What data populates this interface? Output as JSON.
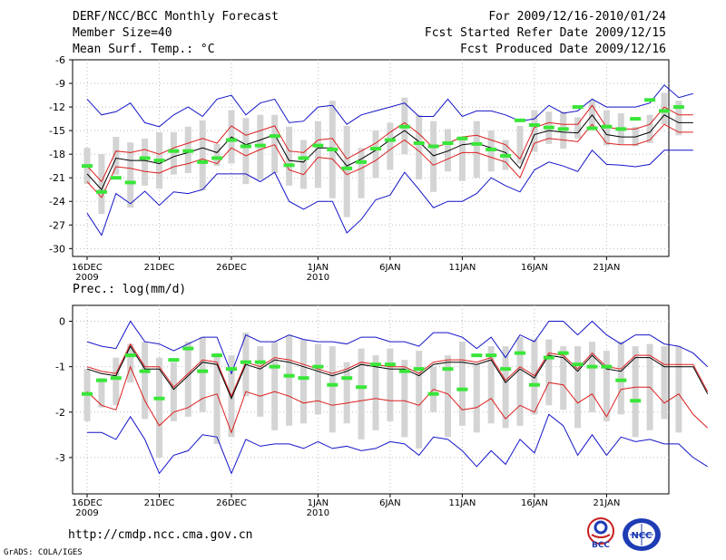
{
  "header": {
    "left": [
      "DERF/NCC/BCC Monthly Forecast",
      "Member Size=40",
      "Mean Surf. Temp.: °C"
    ],
    "right": [
      "For 2009/12/16-2010/01/24",
      "Fcst Started Refer Date 2009/12/15",
      "Fcst Produced Date 2009/12/16"
    ]
  },
  "footer": {
    "url": "http://cmdp.ncc.cma.gov.cn",
    "credit": "GrADS: COLA/IGES",
    "logo_bcc": "BCC",
    "logo_ncc": "NCC"
  },
  "colors": {
    "bar": "#d4d4d4",
    "green": "#39e639",
    "red": "#dc1e1e",
    "blue": "#1414c8",
    "black": "#000000",
    "grid": "#bbbbbb"
  },
  "x_ticks": [
    {
      "day": 0,
      "label": "16DEC",
      "sub": "2009"
    },
    {
      "day": 5,
      "label": "21DEC",
      "sub": ""
    },
    {
      "day": 10,
      "label": "26DEC",
      "sub": ""
    },
    {
      "day": 16,
      "label": "1JAN",
      "sub": "2010"
    },
    {
      "day": 21,
      "label": "6JAN",
      "sub": ""
    },
    {
      "day": 26,
      "label": "11JAN",
      "sub": ""
    },
    {
      "day": 31,
      "label": "16JAN",
      "sub": ""
    },
    {
      "day": 36,
      "label": "21JAN",
      "sub": ""
    }
  ],
  "chart_data": [
    {
      "type": "box-plume",
      "title": "Mean Surf. Temp.: °C",
      "xlabel": "",
      "ylabel": "",
      "ylim": [
        -31,
        -6
      ],
      "yticks": [
        -6,
        -9,
        -12,
        -15,
        -18,
        -21,
        -24,
        -27,
        -30
      ],
      "days": 40,
      "series": [
        {
          "name": "ensemble mean",
          "color": "black",
          "values": [
            -20.5,
            -22.5,
            -18.5,
            -18.8,
            -18.8,
            -19.2,
            -18.3,
            -17.8,
            -17.2,
            -17.8,
            -15.8,
            -16.8,
            -16.2,
            -15.5,
            -18.8,
            -19.0,
            -17.2,
            -17.2,
            -19.5,
            -18.6,
            -17.5,
            -16.2,
            -15.0,
            -16.4,
            -18.2,
            -17.6,
            -16.8,
            -16.6,
            -17.2,
            -17.8,
            -19.8,
            -15.5,
            -15.0,
            -15.2,
            -15.3,
            -13.0,
            -15.5,
            -15.8,
            -15.8,
            -15.2,
            -13.0,
            -14.0,
            -14.0
          ]
        },
        {
          "name": "upper",
          "color": "red",
          "values": [
            -19.5,
            -21.5,
            -17.6,
            -17.8,
            -17.4,
            -18.0,
            -17.2,
            -16.6,
            -16.0,
            -16.6,
            -14.4,
            -15.6,
            -15.0,
            -14.4,
            -17.6,
            -17.8,
            -16.2,
            -16.0,
            -18.6,
            -17.6,
            -16.6,
            -15.2,
            -14.0,
            -15.4,
            -17.2,
            -16.6,
            -15.8,
            -15.6,
            -16.2,
            -16.8,
            -18.6,
            -14.6,
            -14.0,
            -14.2,
            -14.2,
            -11.8,
            -14.6,
            -14.8,
            -14.8,
            -14.2,
            -12.0,
            -13.0,
            -13.0
          ]
        },
        {
          "name": "lower",
          "color": "red",
          "values": [
            -21.5,
            -23.5,
            -19.6,
            -19.8,
            -20.2,
            -20.4,
            -19.6,
            -19.2,
            -18.6,
            -19.2,
            -17.2,
            -18.2,
            -17.4,
            -16.8,
            -20.0,
            -20.6,
            -18.4,
            -18.6,
            -20.6,
            -19.8,
            -18.8,
            -17.4,
            -16.2,
            -17.6,
            -19.4,
            -18.6,
            -17.8,
            -17.8,
            -18.4,
            -19.0,
            -21.0,
            -16.6,
            -16.0,
            -16.2,
            -16.4,
            -14.2,
            -16.6,
            -16.8,
            -16.8,
            -16.2,
            -14.2,
            -15.2,
            -15.2
          ]
        },
        {
          "name": "max",
          "color": "blue",
          "values": [
            -11.0,
            -13.0,
            -12.6,
            -11.5,
            -14.0,
            -14.5,
            -13.0,
            -12.0,
            -13.2,
            -11.0,
            -10.5,
            -13.0,
            -11.5,
            -11.0,
            -14.0,
            -13.8,
            -12.0,
            -11.8,
            -14.2,
            -13.0,
            -12.5,
            -12.0,
            -11.5,
            -13.2,
            -13.2,
            -11.0,
            -13.2,
            -12.5,
            -12.5,
            -13.0,
            -13.8,
            -13.5,
            -11.8,
            -12.8,
            -12.5,
            -11.0,
            -12.0,
            -12.0,
            -12.0,
            -11.5,
            -9.2,
            -10.8,
            -10.3
          ]
        },
        {
          "name": "min",
          "color": "blue",
          "values": [
            -25.5,
            -28.3,
            -23.0,
            -24.3,
            -22.7,
            -24.5,
            -22.8,
            -23.0,
            -22.5,
            -20.5,
            -20.5,
            -20.5,
            -21.5,
            -20.3,
            -24.0,
            -25.0,
            -24.0,
            -24.0,
            -28.0,
            -26.3,
            -23.8,
            -23.2,
            -20.3,
            -22.5,
            -24.8,
            -24.0,
            -24.0,
            -23.0,
            -21.0,
            -22.0,
            -22.8,
            -20.0,
            -19.0,
            -19.5,
            -20.2,
            -17.5,
            -19.3,
            -19.4,
            -19.6,
            -19.3,
            -17.5,
            -17.5,
            -17.5
          ]
        },
        {
          "name": "observed",
          "color": "green",
          "values": [
            -19.5,
            -22.8,
            -21.0,
            -21.6,
            -18.5,
            -18.8,
            -17.6,
            -17.6,
            -19.0,
            -18.5,
            -16.2,
            -17.0,
            -16.9,
            -15.7,
            -19.4,
            -18.5,
            -16.9,
            -17.4,
            -19.8,
            -19.0,
            -17.3,
            -16.2,
            -14.5,
            -16.6,
            -17.0,
            -16.6,
            -16.0,
            -16.7,
            -17.4,
            -18.2,
            -13.7,
            -14.3,
            -14.6,
            -14.8,
            -12.0,
            -14.7,
            -14.5,
            -14.8,
            -13.5,
            -11.1,
            -12.5,
            -12.0
          ]
        },
        {
          "name": "spread_top",
          "color": "grey",
          "values": [
            -17.2,
            -18.0,
            -15.8,
            -16.5,
            -16.0,
            -15.2,
            -15.2,
            -14.5,
            -13.7,
            -16.7,
            -12.4,
            -13.4,
            -13.0,
            -13.0,
            -14.5,
            -16.2,
            -13.8,
            -11.2,
            -14.4,
            -17.2,
            -15.0,
            -14.0,
            -10.8,
            -13.0,
            -13.8,
            -14.8,
            -16.0,
            -13.8,
            -15.0,
            -16.2,
            -14.4,
            -12.4,
            -12.6,
            -12.6,
            -13.3,
            -11.2,
            -12.4,
            -12.8,
            -14.5,
            -13.0,
            -10.2,
            -11.2,
            -11.2
          ]
        },
        {
          "name": "spread_bottom",
          "color": "grey",
          "values": [
            -21.8,
            -25.6,
            -20.6,
            -24.8,
            -22.0,
            -22.4,
            -20.6,
            -20.4,
            -22.6,
            -19.5,
            -19.2,
            -21.8,
            -21.2,
            -20.4,
            -22.0,
            -22.4,
            -22.3,
            -23.6,
            -26.0,
            -23.6,
            -21.0,
            -20.0,
            -18.0,
            -21.2,
            -22.8,
            -20.2,
            -21.4,
            -21.0,
            -20.2,
            -20.0,
            -19.2,
            -17.7,
            -16.7,
            -17.3,
            -16.0,
            -14.6,
            -16.9,
            -16.7,
            -17.0,
            -16.6,
            -14.2,
            -15.6,
            -15.8
          ]
        }
      ]
    },
    {
      "type": "box-plume",
      "title": "Prec.: log(mm/d)",
      "xlabel": "",
      "ylabel": "",
      "ylim": [
        -3.8,
        0.35
      ],
      "yticks": [
        0,
        -1,
        -2,
        -3
      ],
      "days": 40,
      "series": [
        {
          "name": "ensemble mean",
          "color": "black",
          "values": [
            -1.05,
            -1.15,
            -1.2,
            -0.55,
            -1.05,
            -1.05,
            -1.5,
            -1.2,
            -0.9,
            -0.95,
            -1.7,
            -0.95,
            -1.05,
            -0.85,
            -0.9,
            -1.0,
            -1.1,
            -1.2,
            -1.1,
            -0.95,
            -1.0,
            -1.05,
            -1.05,
            -1.2,
            -0.95,
            -0.9,
            -0.9,
            -0.95,
            -0.85,
            -1.35,
            -1.05,
            -1.25,
            -0.75,
            -0.8,
            -1.1,
            -0.75,
            -1.05,
            -1.1,
            -0.8,
            -0.8,
            -1.0,
            -1.0,
            -1.0,
            -1.6
          ]
        },
        {
          "name": "upper",
          "color": "red",
          "values": [
            -1.0,
            -1.1,
            -1.15,
            -0.5,
            -1.0,
            -1.0,
            -1.45,
            -1.15,
            -0.85,
            -0.9,
            -1.65,
            -0.9,
            -1.0,
            -0.8,
            -0.85,
            -0.95,
            -1.05,
            -1.15,
            -1.05,
            -0.9,
            -0.95,
            -1.0,
            -1.0,
            -1.15,
            -0.9,
            -0.85,
            -0.85,
            -0.9,
            -0.8,
            -1.3,
            -1.0,
            -1.2,
            -0.7,
            -0.75,
            -1.05,
            -0.7,
            -1.0,
            -1.05,
            -0.75,
            -0.75,
            -0.95,
            -0.95,
            -0.95,
            -1.55
          ]
        },
        {
          "name": "lower",
          "color": "red",
          "values": [
            -1.55,
            -1.85,
            -1.95,
            -1.0,
            -1.75,
            -2.3,
            -2.0,
            -1.9,
            -1.7,
            -1.6,
            -2.45,
            -1.55,
            -1.65,
            -1.55,
            -1.65,
            -1.8,
            -1.75,
            -1.85,
            -1.8,
            -1.75,
            -1.7,
            -1.75,
            -1.75,
            -1.85,
            -1.5,
            -1.6,
            -1.95,
            -1.9,
            -1.7,
            -2.15,
            -1.85,
            -2.0,
            -1.35,
            -1.4,
            -1.8,
            -1.6,
            -2.1,
            -1.5,
            -1.45,
            -1.45,
            -1.8,
            -1.6,
            -2.05,
            -2.35
          ]
        },
        {
          "name": "max",
          "color": "blue",
          "values": [
            -0.45,
            -0.55,
            -0.6,
            0.0,
            -0.45,
            -0.5,
            -0.65,
            -0.5,
            -0.35,
            -0.35,
            -1.15,
            -0.3,
            -0.45,
            -0.45,
            -0.3,
            -0.4,
            -0.45,
            -0.45,
            -0.5,
            -0.35,
            -0.35,
            -0.45,
            -0.45,
            -0.55,
            -0.25,
            -0.25,
            -0.35,
            -0.6,
            -0.35,
            -0.8,
            -0.3,
            -0.45,
            0.0,
            0.0,
            -0.3,
            0.0,
            -0.3,
            -0.5,
            -0.3,
            -0.3,
            -0.5,
            -0.55,
            -0.7,
            -1.0
          ]
        },
        {
          "name": "min",
          "color": "blue",
          "values": [
            -2.45,
            -2.45,
            -2.6,
            -2.1,
            -2.6,
            -3.35,
            -2.95,
            -2.85,
            -2.5,
            -2.55,
            -3.35,
            -2.6,
            -2.75,
            -2.7,
            -2.7,
            -2.8,
            -2.65,
            -2.8,
            -2.75,
            -2.85,
            -2.8,
            -2.65,
            -2.7,
            -2.95,
            -2.55,
            -2.6,
            -2.85,
            -3.2,
            -2.85,
            -3.15,
            -2.6,
            -2.9,
            -2.05,
            -2.3,
            -2.95,
            -2.5,
            -2.95,
            -2.55,
            -2.65,
            -2.6,
            -2.7,
            -2.7,
            -3.0,
            -3.2
          ]
        },
        {
          "name": "observed",
          "color": "green",
          "values": [
            -1.6,
            -1.3,
            -1.25,
            -0.75,
            -1.1,
            -1.7,
            -0.85,
            -0.6,
            -1.1,
            -0.75,
            -1.05,
            -0.9,
            -0.9,
            -1.0,
            -1.2,
            -1.25,
            -1.0,
            -1.4,
            -1.25,
            -1.45,
            -0.95,
            -0.95,
            -1.1,
            -1.05,
            -1.6,
            -1.05,
            -1.5,
            -0.75,
            -0.75,
            -1.05,
            -0.7,
            -1.4,
            -0.8,
            -0.7,
            -0.95,
            -1.0,
            -1.0,
            -1.3,
            -1.75
          ]
        },
        {
          "name": "spread_top",
          "color": "grey",
          "values": [
            -1.05,
            -1.25,
            -0.8,
            -0.5,
            -0.45,
            -0.8,
            -0.9,
            -0.45,
            -0.35,
            -0.7,
            -0.75,
            -0.25,
            -0.55,
            -0.45,
            -0.3,
            -0.4,
            -0.5,
            -0.55,
            -0.9,
            -0.6,
            -0.75,
            -0.6,
            -0.85,
            -0.65,
            -1.0,
            -0.75,
            -0.45,
            -0.95,
            -0.55,
            -0.55,
            -0.35,
            -0.4,
            -0.4,
            -0.55,
            -0.55,
            -0.45,
            -0.65,
            -0.45,
            -0.55,
            -0.5,
            -0.55,
            -0.55,
            -0.85,
            -1.15
          ]
        },
        {
          "name": "spread_bottom",
          "color": "grey",
          "values": [
            -2.2,
            -1.9,
            -1.85,
            -1.35,
            -2.15,
            -3.0,
            -2.2,
            -2.1,
            -2.0,
            -2.7,
            -2.55,
            -1.65,
            -2.1,
            -2.4,
            -2.3,
            -2.25,
            -2.05,
            -2.45,
            -2.25,
            -2.6,
            -2.4,
            -2.2,
            -2.55,
            -2.8,
            -2.0,
            -2.55,
            -2.3,
            -2.45,
            -2.25,
            -2.35,
            -2.3,
            -2.05,
            -1.85,
            -1.95,
            -2.35,
            -2.0,
            -2.2,
            -2.05,
            -2.55,
            -2.4,
            -2.15,
            -2.45,
            -2.5,
            -3.05
          ]
        }
      ]
    }
  ]
}
